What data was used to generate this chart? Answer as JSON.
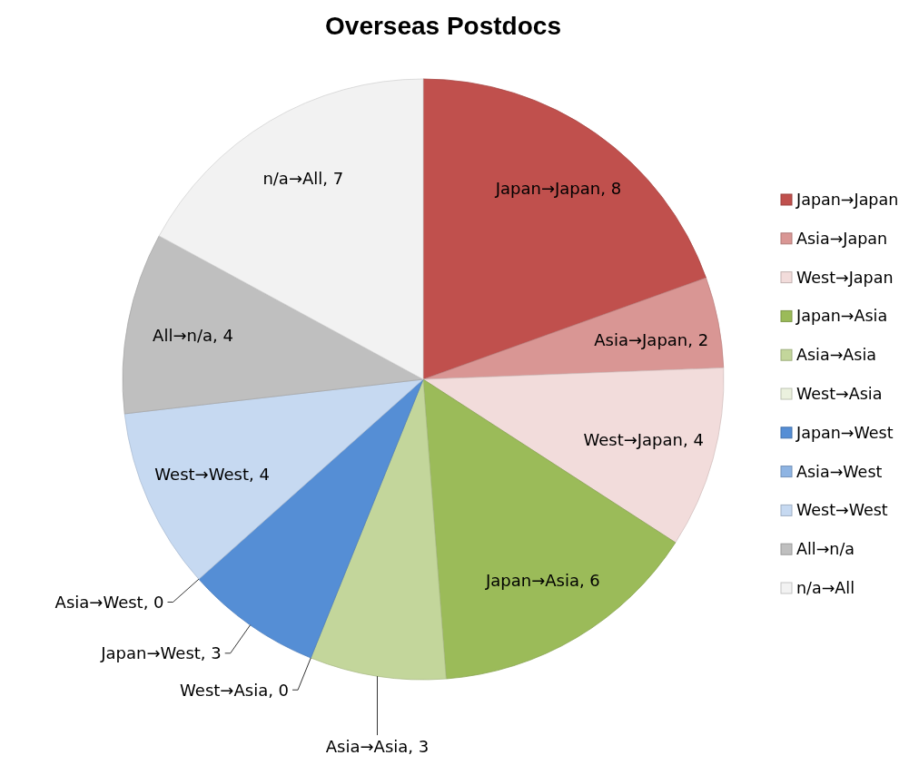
{
  "chart_data": {
    "type": "pie",
    "title": "Overseas Postdocs",
    "categories": [
      "Japan→Japan",
      "Asia→Japan",
      "West→Japan",
      "Japan→Asia",
      "Asia→Asia",
      "West→Asia",
      "Japan→West",
      "Asia→West",
      "West→West",
      "All→n/a",
      "n/a→All"
    ],
    "values": [
      8,
      2,
      4,
      6,
      3,
      0,
      3,
      0,
      4,
      4,
      7
    ],
    "value_labels": [
      "Japan→Japan, 8",
      "Asia→Japan, 2",
      "West→Japan, 4",
      "Japan→Asia, 6",
      "Asia→Asia, 3",
      "West→Asia, 0",
      "Japan→West, 3",
      "Asia→West, 0",
      "West→West, 4",
      "All→n/a, 4",
      "n/a→All, 7"
    ],
    "colors": [
      "#c0504d",
      "#d99694",
      "#f2dcdb",
      "#9bbb59",
      "#c3d69b",
      "#ebf1de",
      "#558ed5",
      "#8eb4e3",
      "#c6d9f1",
      "#bfbfbf",
      "#f2f2f2"
    ],
    "legend": "right"
  }
}
